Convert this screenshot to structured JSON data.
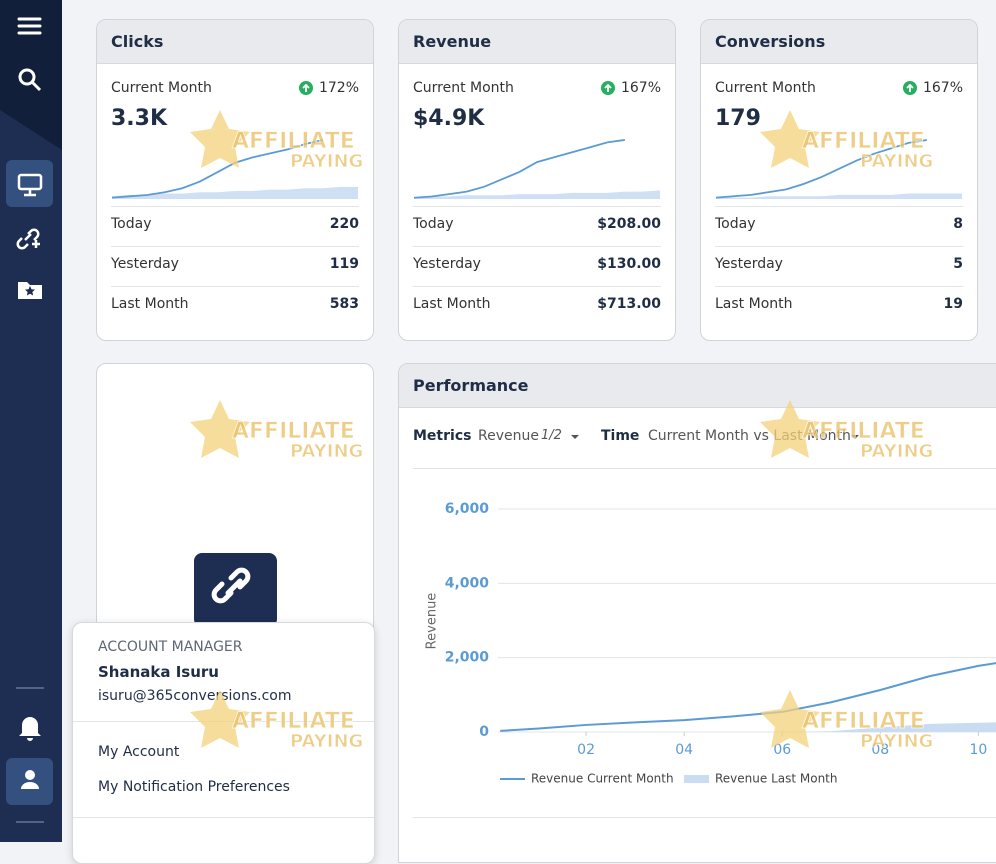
{
  "cards": [
    {
      "title": "Clicks",
      "period": "Current Month",
      "change": "172%",
      "total": "3.3K",
      "trend_current": [
        1,
        2,
        3,
        5,
        8,
        13,
        20,
        27,
        31,
        34,
        37,
        41,
        44
      ],
      "trend_last": [
        2,
        3,
        3,
        4,
        4,
        5,
        5,
        6,
        6,
        7,
        7,
        8,
        8,
        9,
        9
      ],
      "rows": [
        {
          "label": "Today",
          "value": "220"
        },
        {
          "label": "Yesterday",
          "value": "119"
        },
        {
          "label": "Last Month",
          "value": "583"
        }
      ]
    },
    {
      "title": "Revenue",
      "period": "Current Month",
      "change": "167%",
      "total": "$4.9K",
      "trend_current": [
        1,
        2,
        4,
        6,
        10,
        16,
        22,
        30,
        34,
        38,
        42,
        46,
        48
      ],
      "trend_last": [
        1,
        2,
        2,
        3,
        3,
        3,
        4,
        4,
        4,
        5,
        5,
        5,
        6,
        6,
        7
      ],
      "rows": [
        {
          "label": "Today",
          "value": "$208.00"
        },
        {
          "label": "Yesterday",
          "value": "$130.00"
        },
        {
          "label": "Last Month",
          "value": "$713.00"
        }
      ]
    },
    {
      "title": "Conversions",
      "period": "Current Month",
      "change": "167%",
      "total": "179",
      "trend_current": [
        1,
        2,
        3,
        5,
        7,
        11,
        16,
        22,
        28,
        33,
        37,
        41,
        43
      ],
      "trend_last": [
        1,
        1,
        1,
        2,
        2,
        2,
        2,
        3,
        3,
        3,
        3,
        4,
        4,
        4,
        4
      ],
      "rows": [
        {
          "label": "Today",
          "value": "8"
        },
        {
          "label": "Yesterday",
          "value": "5"
        },
        {
          "label": "Last Month",
          "value": "19"
        }
      ]
    }
  ],
  "performance": {
    "title": "Performance",
    "metrics_label": "Metrics",
    "metric": "Revenue",
    "metric_page": "1/2",
    "time_label": "Time",
    "time": "Current Month vs Last Month"
  },
  "chart_data": {
    "type": "line",
    "y_label": "Revenue",
    "x": [
      0.25,
      1,
      2,
      3,
      4,
      5,
      6,
      7,
      8,
      9,
      10,
      10.4
    ],
    "xlim": [
      0,
      10.4
    ],
    "xticks": [
      {
        "value": 2,
        "label": "02"
      },
      {
        "value": 4,
        "label": "04"
      },
      {
        "value": 6,
        "label": "06"
      },
      {
        "value": 8,
        "label": "08"
      },
      {
        "value": 10,
        "label": "10"
      }
    ],
    "ylim": [
      0,
      6000
    ],
    "yticks": [
      0,
      {
        "value": 2000,
        "label": "2,000"
      },
      {
        "value": 4000,
        "label": "4,000"
      },
      {
        "value": 6000,
        "label": "6,000"
      }
    ],
    "grid": true,
    "series": [
      {
        "name": "Revenue Current Month",
        "color": "#5b9bd5",
        "values": [
          30,
          90,
          190,
          260,
          320,
          420,
          540,
          800,
          1130,
          1500,
          1780,
          1860
        ]
      },
      {
        "name": "Revenue Last Month",
        "color": "#c9dcf2",
        "values": [
          0,
          0,
          0,
          0,
          0,
          0,
          0,
          20,
          120,
          220,
          250,
          260
        ]
      }
    ]
  },
  "account_manager": {
    "heading": "ACCOUNT MANAGER",
    "name": "Shanaka Isuru",
    "email": "isuru@365conversions.com",
    "menu": [
      "My Account",
      "My Notification Preferences"
    ]
  },
  "watermark": [
    "AFFILIATE",
    "PAYING"
  ]
}
